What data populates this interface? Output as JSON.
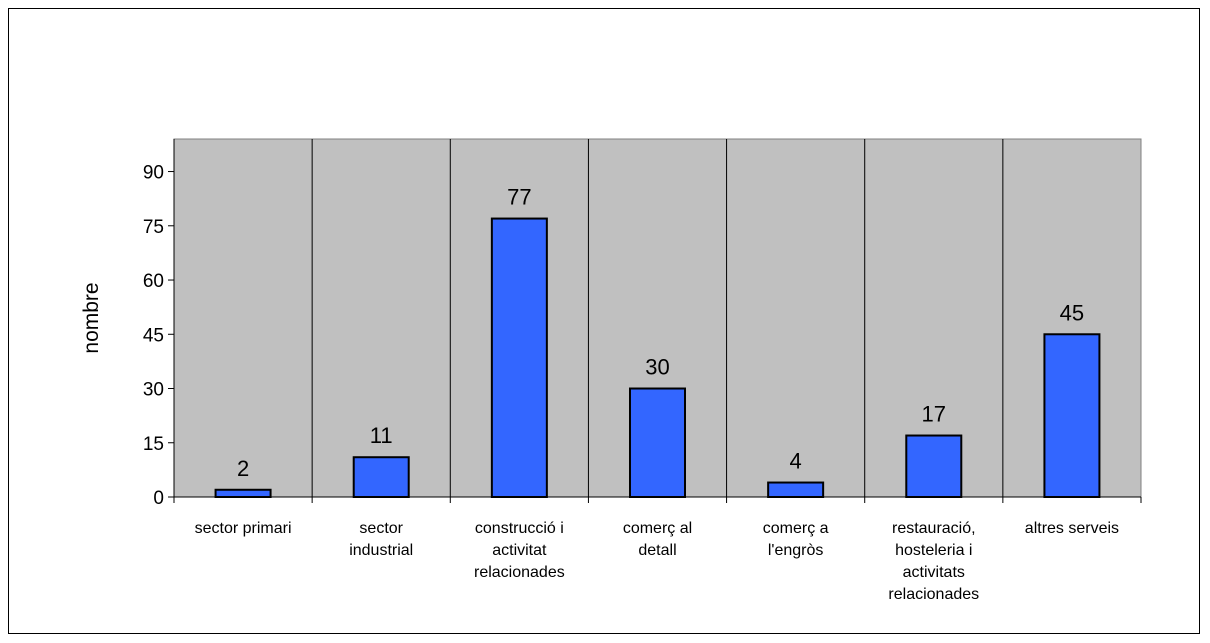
{
  "chart_data": {
    "type": "bar",
    "title": "",
    "xlabel": "",
    "ylabel": "nombre",
    "ylim": [
      0,
      99
    ],
    "yticks": [
      0,
      15,
      30,
      45,
      60,
      75,
      90
    ],
    "categories": [
      [
        "sector primari"
      ],
      [
        "sector",
        "industrial"
      ],
      [
        "construcció i",
        "activitat",
        "relacionades"
      ],
      [
        "comerç al",
        "detall"
      ],
      [
        "comerç a",
        "l'engròs"
      ],
      [
        "restauració,",
        "hosteleria i",
        "activitats",
        "relacionades"
      ],
      [
        "altres serveis"
      ]
    ],
    "values": [
      2,
      11,
      77,
      30,
      4,
      17,
      45
    ],
    "grid": false,
    "legend": "none",
    "colors": {
      "bar": "#3366FF",
      "plot_background": "#C0C0C0",
      "outline": "#000000"
    }
  }
}
